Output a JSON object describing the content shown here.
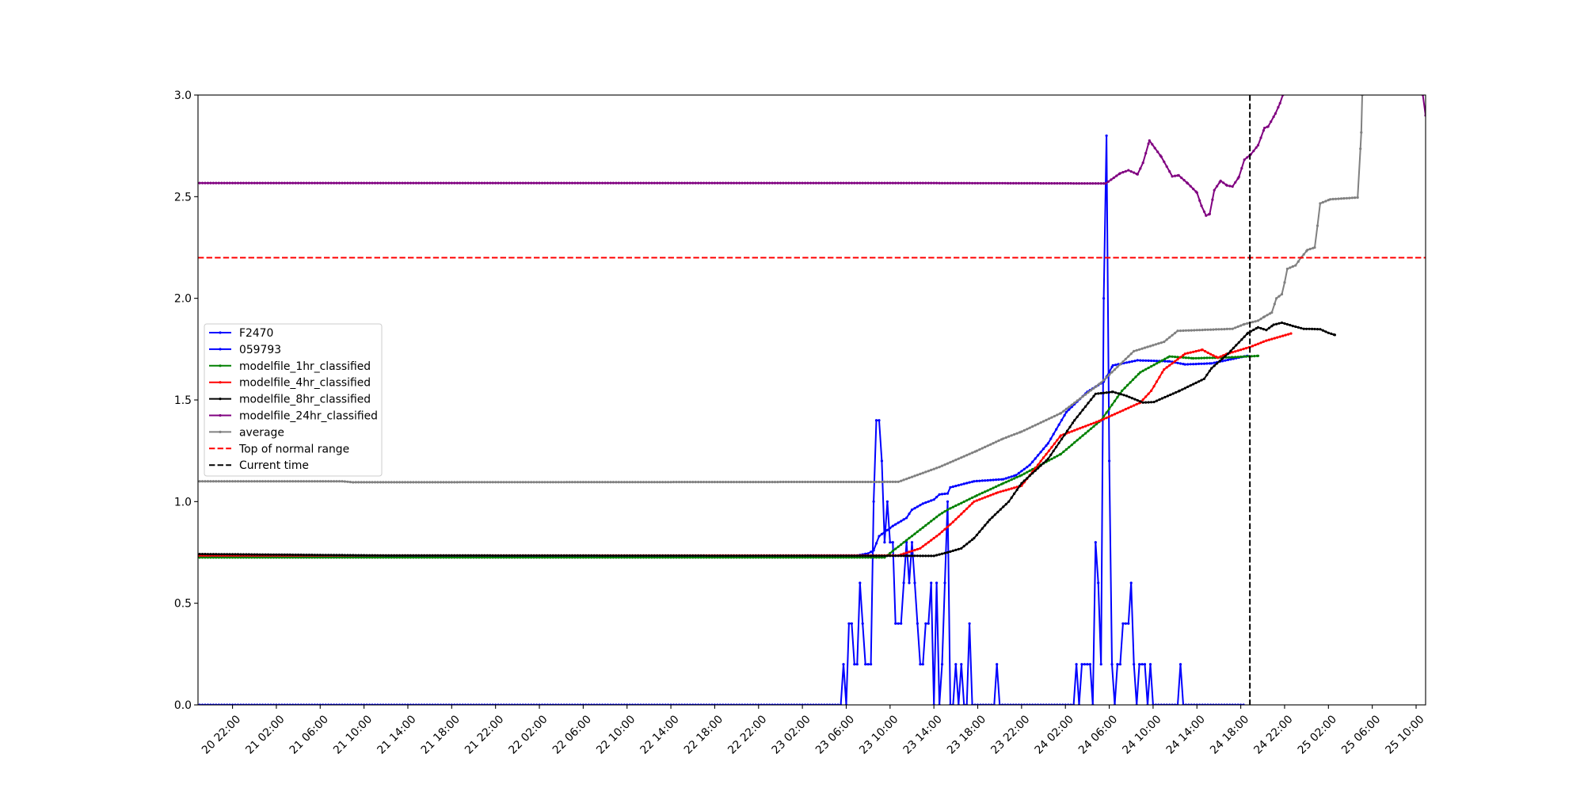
{
  "chart_data": {
    "type": "line",
    "title": "",
    "xlabel": "",
    "ylabel": "",
    "xlim": [
      "20 18:51",
      "25 10:52"
    ],
    "ylim": [
      0,
      3
    ],
    "grid": false,
    "legend_placement": "center-left",
    "x_ticks": [
      "20 22:00",
      "21 02:00",
      "21 06:00",
      "21 10:00",
      "21 14:00",
      "21 18:00",
      "21 22:00",
      "22 02:00",
      "22 06:00",
      "22 10:00",
      "22 14:00",
      "22 18:00",
      "22 22:00",
      "23 02:00",
      "23 06:00",
      "23 10:00",
      "23 14:00",
      "23 18:00",
      "23 22:00",
      "24 02:00",
      "24 06:00",
      "24 10:00",
      "24 14:00",
      "24 18:00",
      "24 22:00",
      "25 02:00",
      "25 06:00",
      "25 10:00"
    ],
    "y_ticks": [
      "0.0",
      "0.5",
      "1.0",
      "1.5",
      "2.0",
      "2.5",
      "3.0"
    ],
    "series": [
      {
        "name": "F2470",
        "color": "#0000ff",
        "points": [
          [
            "20 18:45",
            0
          ],
          [
            "23 05:30",
            0
          ],
          [
            "23 05:45",
            0.2
          ],
          [
            "23 06:00",
            0
          ],
          [
            "23 06:15",
            0.4
          ],
          [
            "23 06:30",
            0.4
          ],
          [
            "23 06:45",
            0.2
          ],
          [
            "23 07:00",
            0.2
          ],
          [
            "23 07:15",
            0.6
          ],
          [
            "23 07:30",
            0.4
          ],
          [
            "23 07:45",
            0.2
          ],
          [
            "23 08:00",
            0.2
          ],
          [
            "23 08:15",
            0.2
          ],
          [
            "23 08:30",
            1.0
          ],
          [
            "23 08:45",
            1.4
          ],
          [
            "23 09:00",
            1.4
          ],
          [
            "23 09:15",
            1.2
          ],
          [
            "23 09:30",
            0.8
          ],
          [
            "23 09:45",
            1.0
          ],
          [
            "23 10:00",
            0.8
          ],
          [
            "23 10:15",
            0.8
          ],
          [
            "23 10:30",
            0.4
          ],
          [
            "23 10:45",
            0.4
          ],
          [
            "23 11:00",
            0.4
          ],
          [
            "23 11:15",
            0.6
          ],
          [
            "23 11:30",
            0.8
          ],
          [
            "23 11:45",
            0.6
          ],
          [
            "23 12:00",
            0.8
          ],
          [
            "23 12:15",
            0.6
          ],
          [
            "23 12:30",
            0.4
          ],
          [
            "23 12:45",
            0.2
          ],
          [
            "23 13:00",
            0.2
          ],
          [
            "23 13:15",
            0.4
          ],
          [
            "23 13:30",
            0.4
          ],
          [
            "23 13:45",
            0.6
          ],
          [
            "23 14:00",
            0
          ],
          [
            "23 14:15",
            0.6
          ],
          [
            "23 14:30",
            0
          ],
          [
            "23 14:45",
            0.2
          ],
          [
            "23 15:00",
            0.6
          ],
          [
            "23 15:15",
            1.0
          ],
          [
            "23 15:30",
            0
          ],
          [
            "23 15:45",
            0
          ],
          [
            "23 16:00",
            0.2
          ],
          [
            "23 16:15",
            0
          ],
          [
            "23 16:30",
            0.2
          ],
          [
            "23 16:45",
            0
          ],
          [
            "23 17:00",
            0
          ],
          [
            "23 17:15",
            0.4
          ],
          [
            "23 17:30",
            0
          ],
          [
            "23 19:30",
            0
          ],
          [
            "23 19:45",
            0.2
          ],
          [
            "23 20:00",
            0
          ],
          [
            "24 02:45",
            0
          ],
          [
            "24 03:00",
            0.2
          ],
          [
            "24 03:15",
            0
          ],
          [
            "24 03:30",
            0.2
          ],
          [
            "24 03:45",
            0.2
          ],
          [
            "24 04:00",
            0.2
          ],
          [
            "24 04:15",
            0.2
          ],
          [
            "24 04:30",
            0
          ],
          [
            "24 04:45",
            0.8
          ],
          [
            "24 05:00",
            0.6
          ],
          [
            "24 05:15",
            0.2
          ],
          [
            "24 05:30",
            2.0
          ],
          [
            "24 05:45",
            2.8
          ],
          [
            "24 06:00",
            1.2
          ],
          [
            "24 06:15",
            0.2
          ],
          [
            "24 06:30",
            0
          ],
          [
            "24 06:45",
            0.2
          ],
          [
            "24 07:00",
            0.2
          ],
          [
            "24 07:15",
            0.4
          ],
          [
            "24 07:30",
            0.4
          ],
          [
            "24 07:45",
            0.4
          ],
          [
            "24 08:00",
            0.6
          ],
          [
            "24 08:15",
            0.2
          ],
          [
            "24 08:30",
            0
          ],
          [
            "24 08:45",
            0.2
          ],
          [
            "24 09:00",
            0.2
          ],
          [
            "24 09:15",
            0.2
          ],
          [
            "24 09:30",
            0
          ],
          [
            "24 09:45",
            0.2
          ],
          [
            "24 10:00",
            0
          ],
          [
            "24 12:15",
            0
          ],
          [
            "24 12:30",
            0.2
          ],
          [
            "24 12:45",
            0
          ],
          [
            "24 18:15",
            0
          ]
        ]
      },
      {
        "name": "059793",
        "color": "#0000ff",
        "points": [
          [
            "20 18:45",
            0.73
          ],
          [
            "23 07:00",
            0.735
          ],
          [
            "23 08:00",
            0.745
          ],
          [
            "23 08:30",
            0.76
          ],
          [
            "23 09:00",
            0.83
          ],
          [
            "23 10:15",
            0.88
          ],
          [
            "23 11:30",
            0.92
          ],
          [
            "23 12:00",
            0.96
          ],
          [
            "23 13:00",
            0.99
          ],
          [
            "23 14:00",
            1.01
          ],
          [
            "23 14:30",
            1.035
          ],
          [
            "23 15:15",
            1.04
          ],
          [
            "23 15:30",
            1.07
          ],
          [
            "23 17:40",
            1.1
          ],
          [
            "23 20:20",
            1.11
          ],
          [
            "23 21:30",
            1.13
          ],
          [
            "23 22:45",
            1.18
          ],
          [
            "24 00:25",
            1.286
          ],
          [
            "24 02:05",
            1.44
          ],
          [
            "24 04:00",
            1.54
          ],
          [
            "24 05:30",
            1.59
          ],
          [
            "24 06:20",
            1.67
          ],
          [
            "24 08:35",
            1.695
          ],
          [
            "24 11:30",
            1.69
          ],
          [
            "24 12:55",
            1.675
          ],
          [
            "24 15:20",
            1.68
          ],
          [
            "24 18:35",
            1.717
          ]
        ]
      },
      {
        "name": "modelfile_1hr_classified",
        "color": "#008000",
        "points": [
          [
            "20 18:45",
            0.725
          ],
          [
            "23 09:30",
            0.725
          ],
          [
            "23 11:30",
            0.81
          ],
          [
            "23 14:30",
            0.935
          ],
          [
            "23 15:15",
            0.96
          ],
          [
            "23 17:55",
            1.03
          ],
          [
            "23 20:20",
            1.09
          ],
          [
            "23 22:00",
            1.13
          ],
          [
            "24 01:35",
            1.234
          ],
          [
            "24 05:15",
            1.4
          ],
          [
            "24 07:10",
            1.545
          ],
          [
            "24 08:50",
            1.636
          ],
          [
            "24 11:30",
            1.714
          ],
          [
            "24 13:40",
            1.705
          ],
          [
            "24 17:15",
            1.71
          ],
          [
            "24 19:35",
            1.717
          ]
        ]
      },
      {
        "name": "modelfile_4hr_classified",
        "color": "#ff0000",
        "points": [
          [
            "20 18:45",
            0.735
          ],
          [
            "23 10:45",
            0.735
          ],
          [
            "23 12:45",
            0.77
          ],
          [
            "23 14:30",
            0.84
          ],
          [
            "23 15:45",
            0.9
          ],
          [
            "23 17:40",
            1.0
          ],
          [
            "23 19:50",
            1.045
          ],
          [
            "23 22:00",
            1.078
          ],
          [
            "24 01:35",
            1.325
          ],
          [
            "24 05:15",
            1.4
          ],
          [
            "24 08:50",
            1.487
          ],
          [
            "24 09:50",
            1.545
          ],
          [
            "24 11:00",
            1.65
          ],
          [
            "24 12:55",
            1.727
          ],
          [
            "24 14:30",
            1.747
          ],
          [
            "24 15:15",
            1.725
          ],
          [
            "24 15:55",
            1.708
          ],
          [
            "24 16:45",
            1.727
          ],
          [
            "24 18:50",
            1.76
          ],
          [
            "24 20:20",
            1.792
          ],
          [
            "24 22:35",
            1.827
          ]
        ]
      },
      {
        "name": "modelfile_8hr_classified",
        "color": "#000000",
        "points": [
          [
            "20 18:45",
            0.742
          ],
          [
            "21 12:00",
            0.735
          ],
          [
            "23 14:00",
            0.733
          ],
          [
            "23 15:15",
            0.75
          ],
          [
            "23 16:30",
            0.77
          ],
          [
            "23 17:40",
            0.82
          ],
          [
            "23 19:05",
            0.91
          ],
          [
            "23 20:50",
            1.0
          ],
          [
            "23 22:00",
            1.09
          ],
          [
            "24 00:25",
            1.21
          ],
          [
            "24 02:50",
            1.4
          ],
          [
            "24 04:45",
            1.53
          ],
          [
            "24 06:20",
            1.54
          ],
          [
            "24 07:35",
            1.52
          ],
          [
            "24 09:05",
            1.487
          ],
          [
            "24 10:05",
            1.49
          ],
          [
            "24 12:25",
            1.545
          ],
          [
            "24 14:40",
            1.604
          ],
          [
            "24 15:20",
            1.656
          ],
          [
            "24 16:50",
            1.727
          ],
          [
            "24 18:40",
            1.83
          ],
          [
            "24 19:35",
            1.857
          ],
          [
            "24 20:20",
            1.844
          ],
          [
            "24 21:00",
            1.87
          ],
          [
            "24 21:45",
            1.88
          ],
          [
            "24 22:45",
            1.864
          ],
          [
            "24 23:45",
            1.85
          ],
          [
            "25 01:15",
            1.848
          ],
          [
            "25 02:00",
            1.83
          ],
          [
            "25 02:35",
            1.82
          ]
        ]
      },
      {
        "name": "modelfile_24hr_classified",
        "color": "#800080",
        "points": [
          [
            "20 18:45",
            2.567
          ],
          [
            "23 14:00",
            2.567
          ],
          [
            "24 05:40",
            2.565
          ],
          [
            "24 06:25",
            2.593
          ],
          [
            "24 07:00",
            2.615
          ],
          [
            "24 07:45",
            2.63
          ],
          [
            "24 08:35",
            2.61
          ],
          [
            "24 09:05",
            2.667
          ],
          [
            "24 09:40",
            2.776
          ],
          [
            "24 10:45",
            2.696
          ],
          [
            "24 11:45",
            2.6
          ],
          [
            "24 12:20",
            2.605
          ],
          [
            "24 13:10",
            2.565
          ],
          [
            "24 14:00",
            2.52
          ],
          [
            "24 14:25",
            2.455
          ],
          [
            "24 14:50",
            2.407
          ],
          [
            "24 15:10",
            2.415
          ],
          [
            "24 15:35",
            2.532
          ],
          [
            "24 16:10",
            2.578
          ],
          [
            "24 16:45",
            2.555
          ],
          [
            "24 17:15",
            2.55
          ],
          [
            "24 17:50",
            2.597
          ],
          [
            "24 18:20",
            2.682
          ],
          [
            "24 18:55",
            2.708
          ],
          [
            "24 19:35",
            2.753
          ],
          [
            "24 20:10",
            2.838
          ],
          [
            "24 20:30",
            2.845
          ],
          [
            "24 21:10",
            2.909
          ],
          [
            "24 21:35",
            2.96
          ],
          [
            "24 21:50",
            3.0
          ],
          [
            "24 22:10",
            3.1
          ],
          [
            "25 10:25",
            3.1
          ],
          [
            "25 10:37",
            3.0
          ],
          [
            "25 10:52",
            2.9
          ]
        ]
      },
      {
        "name": "average",
        "color": "#808080",
        "points": [
          [
            "20 18:45",
            1.1
          ],
          [
            "21 08:00",
            1.1
          ],
          [
            "21 09:00",
            1.095
          ],
          [
            "23 10:45",
            1.097
          ],
          [
            "23 14:30",
            1.17
          ],
          [
            "23 17:55",
            1.25
          ],
          [
            "23 20:20",
            1.31
          ],
          [
            "23 22:00",
            1.344
          ],
          [
            "24 01:35",
            1.435
          ],
          [
            "24 05:15",
            1.585
          ],
          [
            "24 08:15",
            1.74
          ],
          [
            "24 11:00",
            1.786
          ],
          [
            "24 12:15",
            1.84
          ],
          [
            "24 17:15",
            1.85
          ],
          [
            "24 18:20",
            1.873
          ],
          [
            "24 19:35",
            1.89
          ],
          [
            "24 20:10",
            1.91
          ],
          [
            "24 20:50",
            1.93
          ],
          [
            "24 21:15",
            2.0
          ],
          [
            "24 21:45",
            2.02
          ],
          [
            "24 22:00",
            2.078
          ],
          [
            "24 22:15",
            2.145
          ],
          [
            "24 23:00",
            2.162
          ],
          [
            "24 23:30",
            2.2
          ],
          [
            "25 00:05",
            2.238
          ],
          [
            "25 00:45",
            2.25
          ],
          [
            "25 01:00",
            2.357
          ],
          [
            "25 01:15",
            2.467
          ],
          [
            "25 02:10",
            2.487
          ],
          [
            "25 04:40",
            2.496
          ],
          [
            "25 05:00",
            2.816
          ],
          [
            "25 05:05",
            3.0
          ],
          [
            "25 05:15",
            3.5
          ]
        ]
      }
    ],
    "reference_lines": {
      "top_of_normal_range": {
        "name": "Top of normal range",
        "value": 2.2,
        "color": "#ff0000"
      },
      "current_time": {
        "name": "Current time",
        "value": "24 18:50",
        "color": "#000000"
      }
    }
  }
}
